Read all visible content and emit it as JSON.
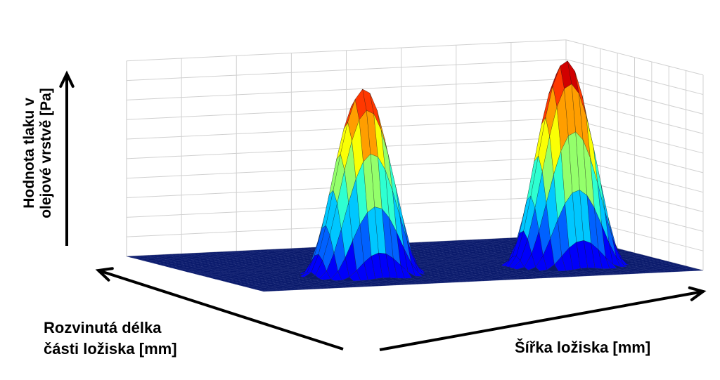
{
  "chart_data": {
    "type": "surface",
    "title": "",
    "zlabel": [
      "Hodnota tlaku v",
      "olejové vrstvě [Pa]"
    ],
    "xlabel": [
      "Rozvinutá délka",
      "části ložiska [mm]"
    ],
    "ylabel": "Šířka ložiska [mm]",
    "tick_labels_shown": false,
    "grid": true,
    "colormap": "jet",
    "colors": {
      "floor": "#0a1a6b",
      "edge": "#1a1a1a",
      "grid": "#d0d0d0",
      "arrow": "#000000"
    },
    "peaks": [
      {
        "name": "peak-1",
        "relative_height": 1.0
      },
      {
        "name": "peak-2",
        "relative_height": 1.1
      }
    ]
  }
}
